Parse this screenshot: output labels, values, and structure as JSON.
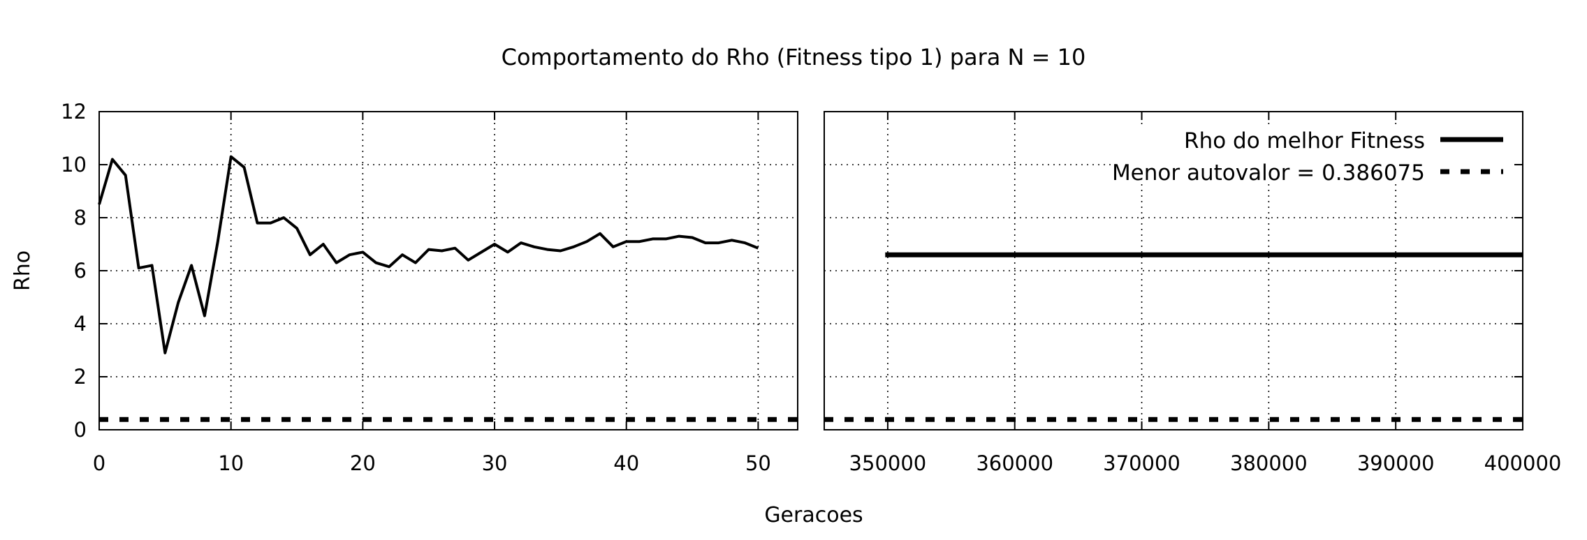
{
  "chart_data": {
    "type": "line",
    "title": "Comportamento do Rho (Fitness tipo 1) para N = 10",
    "xlabel": "Geracoes",
    "ylabel": "Rho",
    "ylim": [
      0,
      12
    ],
    "yticks": [
      "0",
      "2",
      "4",
      "6",
      "8",
      "10",
      "12"
    ],
    "broken_x_axis": true,
    "grid": true,
    "legend_position": "top-right",
    "panels": [
      {
        "xlim": [
          0,
          53
        ],
        "xticks": [
          "0",
          "10",
          "20",
          "30",
          "40",
          "50"
        ]
      },
      {
        "xlim": [
          345000,
          400000
        ],
        "xticks": [
          "350000",
          "360000",
          "370000",
          "380000",
          "390000",
          "400000"
        ]
      }
    ],
    "series": [
      {
        "name": "Rho do melhor Fitness",
        "style": "solid",
        "x": [
          0,
          1,
          2,
          3,
          4,
          5,
          6,
          7,
          8,
          9,
          10,
          11,
          12,
          13,
          14,
          15,
          16,
          17,
          18,
          19,
          20,
          21,
          22,
          23,
          24,
          25,
          26,
          27,
          28,
          29,
          30,
          31,
          32,
          33,
          34,
          35,
          36,
          37,
          38,
          39,
          40,
          41,
          42,
          43,
          44,
          45,
          46,
          47,
          48,
          49,
          50
        ],
        "y": [
          8.5,
          10.2,
          9.6,
          6.1,
          6.2,
          2.9,
          4.8,
          6.2,
          4.3,
          7.1,
          10.3,
          9.9,
          7.8,
          7.8,
          8.0,
          7.6,
          6.6,
          7.0,
          6.3,
          6.6,
          6.7,
          6.3,
          6.15,
          6.6,
          6.3,
          6.8,
          6.75,
          6.85,
          6.4,
          6.7,
          7.0,
          6.7,
          7.05,
          6.9,
          6.8,
          6.75,
          6.9,
          7.1,
          7.4,
          6.9,
          7.1,
          7.1,
          7.2,
          7.2,
          7.3,
          7.25,
          7.05,
          7.05,
          7.15,
          7.05,
          6.85
        ],
        "x_right": [
          349800,
          400000
        ],
        "y_right": [
          6.6,
          6.6
        ]
      },
      {
        "name": "Menor autovalor = 0.386075",
        "style": "dashed",
        "x": [
          0,
          53
        ],
        "y": [
          0.386075,
          0.386075
        ],
        "x_right": [
          345000,
          400000
        ],
        "y_right": [
          0.386075,
          0.386075
        ]
      }
    ]
  }
}
